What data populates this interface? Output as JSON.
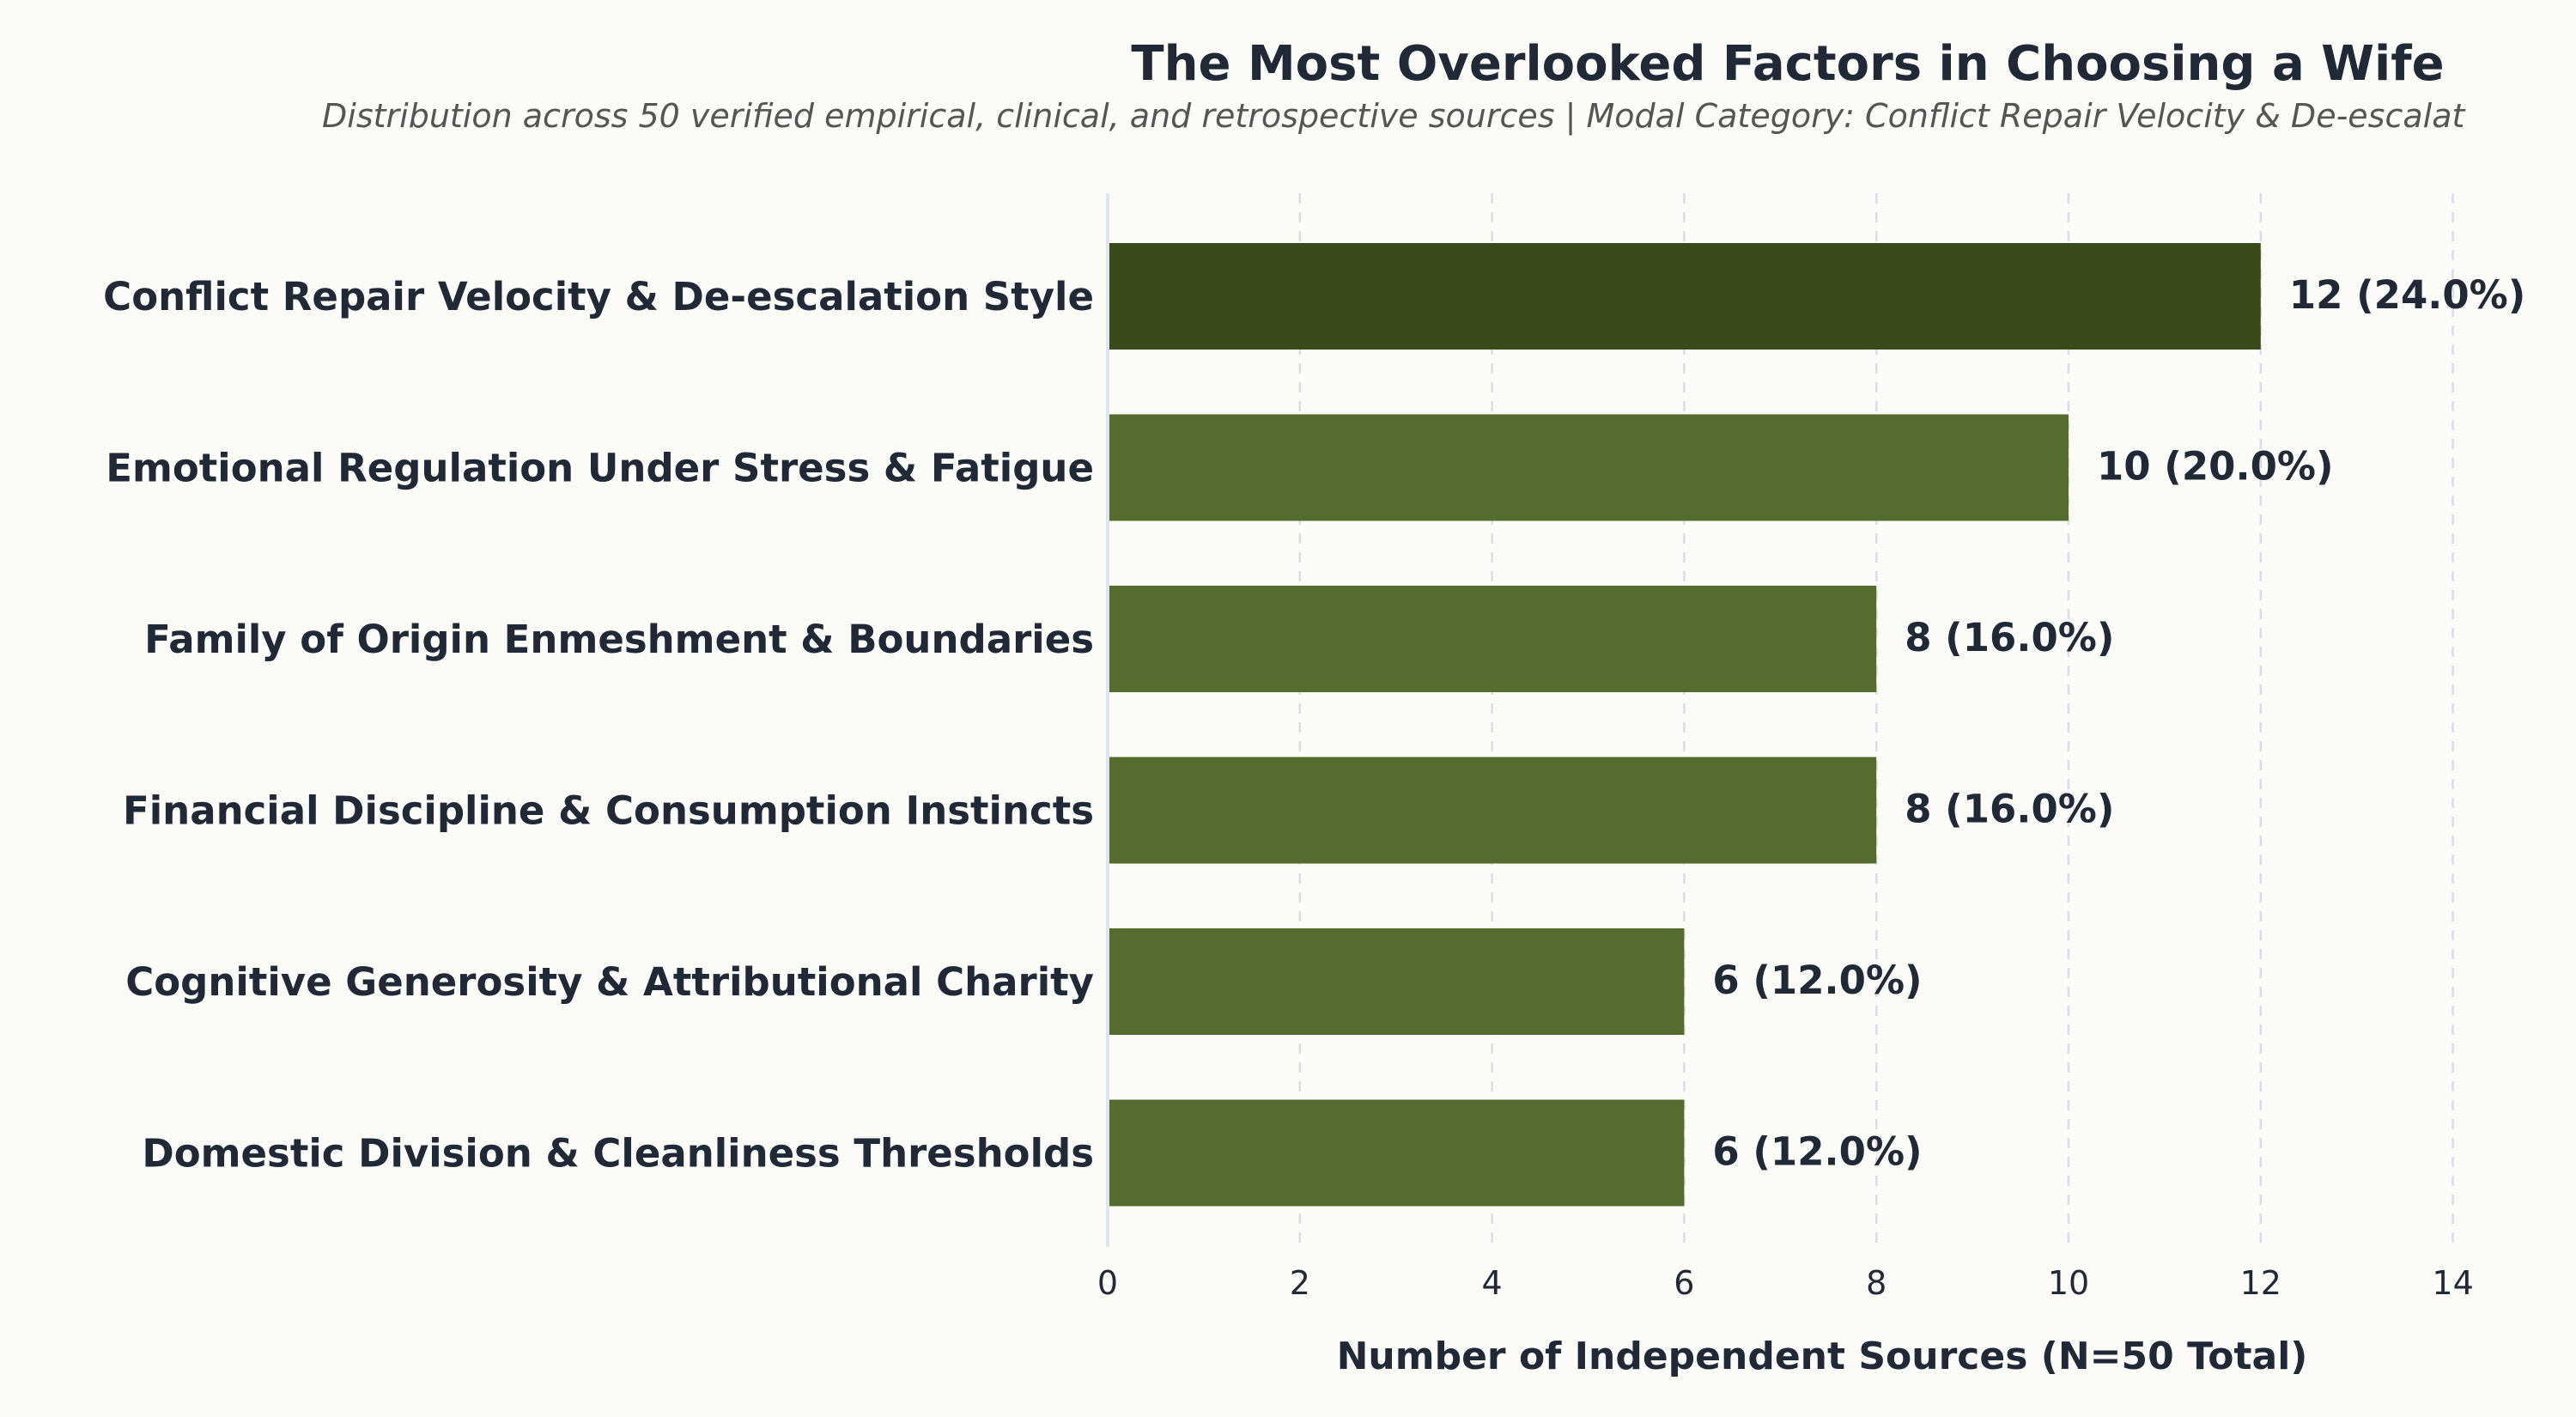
{
  "chart_data": {
    "type": "bar",
    "orientation": "horizontal",
    "title": "The Most Overlooked Factors in Choosing a Wife",
    "subtitle": "Distribution across 50 verified empirical, clinical, and retrospective sources | Modal Category: Conflict Repair Velocity & De-escalat",
    "xlabel": "Number of Independent Sources (N=50 Total)",
    "ylabel": "",
    "xlim": [
      0,
      14
    ],
    "xticks": [
      "0",
      "2",
      "4",
      "6",
      "8",
      "10",
      "12",
      "14"
    ],
    "grid": "vertical dashed",
    "categories": [
      "Conflict Repair Velocity & De-escalation Style",
      "Emotional Regulation Under Stress & Fatigue",
      "Family of Origin Enmeshment & Boundaries",
      "Financial Discipline & Consumption Instincts",
      "Cognitive Generosity & Attributional Charity",
      "Domestic Division & Cleanliness Thresholds"
    ],
    "values": [
      12,
      10,
      8,
      8,
      6,
      6
    ],
    "value_labels": [
      "12 (24.0%)",
      "10 (20.0%)",
      "8 (16.0%)",
      "8 (16.0%)",
      "6 (12.0%)",
      "6 (12.0%)"
    ],
    "colors": {
      "highlight": "#3a4a1b",
      "default": "#566b30",
      "text": "#212836",
      "axis": "#e0e4f0",
      "background": "#fbfbf8"
    }
  }
}
